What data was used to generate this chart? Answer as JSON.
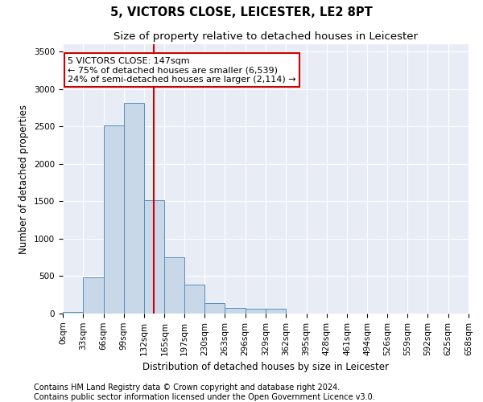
{
  "title": "5, VICTORS CLOSE, LEICESTER, LE2 8PT",
  "subtitle": "Size of property relative to detached houses in Leicester",
  "xlabel": "Distribution of detached houses by size in Leicester",
  "ylabel": "Number of detached properties",
  "bar_values": [
    20,
    480,
    2510,
    2820,
    1520,
    750,
    390,
    140,
    80,
    60,
    60,
    0,
    0,
    0,
    0,
    0,
    0,
    0,
    0,
    0
  ],
  "bin_edges": [
    0,
    33,
    66,
    99,
    132,
    165,
    197,
    230,
    263,
    296,
    329,
    362,
    395,
    428,
    461,
    494,
    526,
    559,
    592,
    625,
    658
  ],
  "tick_labels": [
    "0sqm",
    "33sqm",
    "66sqm",
    "99sqm",
    "132sqm",
    "165sqm",
    "197sqm",
    "230sqm",
    "263sqm",
    "296sqm",
    "329sqm",
    "362sqm",
    "395sqm",
    "428sqm",
    "461sqm",
    "494sqm",
    "526sqm",
    "559sqm",
    "592sqm",
    "625sqm",
    "658sqm"
  ],
  "bar_color": "#c8d8e8",
  "bar_edge_color": "#5a8fbd",
  "vline_x": 147,
  "vline_color": "#cc0000",
  "annotation_line1": "5 VICTORS CLOSE: 147sqm",
  "annotation_line2": "← 75% of detached houses are smaller (6,539)",
  "annotation_line3": "24% of semi-detached houses are larger (2,114) →",
  "annotation_box_color": "#cc0000",
  "ylim": [
    0,
    3600
  ],
  "yticks": [
    0,
    500,
    1000,
    1500,
    2000,
    2500,
    3000,
    3500
  ],
  "bg_color": "#e8edf5",
  "footer_line1": "Contains HM Land Registry data © Crown copyright and database right 2024.",
  "footer_line2": "Contains public sector information licensed under the Open Government Licence v3.0.",
  "title_fontsize": 10.5,
  "subtitle_fontsize": 9.5,
  "axis_label_fontsize": 8.5,
  "tick_fontsize": 7.5,
  "annotation_fontsize": 8,
  "footer_fontsize": 7
}
